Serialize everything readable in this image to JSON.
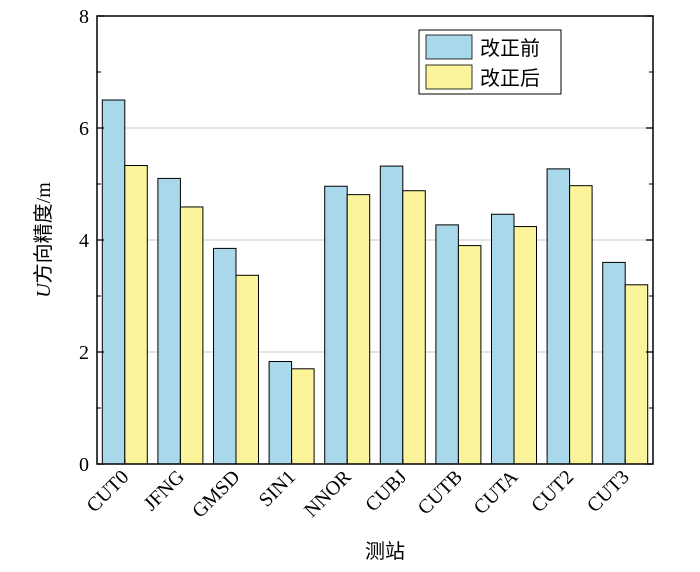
{
  "chart_data": {
    "type": "bar",
    "title": "",
    "xlabel": "测站",
    "ylabel": {
      "italic": "U",
      "cjk": "方向精度",
      "unit": "/m"
    },
    "ylim": [
      0,
      8
    ],
    "yticks": [
      0,
      2,
      4,
      6,
      8
    ],
    "grid": "horizontal",
    "legend_position": "top-right",
    "categories": [
      "CUT0",
      "JFNG",
      "GMSD",
      "SIN1",
      "NNOR",
      "CUBJ",
      "CUTB",
      "CUTA",
      "CUT2",
      "CUT3"
    ],
    "series": [
      {
        "name": "改正前",
        "color": "#a8d8ea",
        "values": [
          6.5,
          5.1,
          3.85,
          1.83,
          4.96,
          5.32,
          4.27,
          4.46,
          5.27,
          3.6
        ]
      },
      {
        "name": "改正后",
        "color": "#fbf49a",
        "values": [
          5.33,
          4.59,
          3.37,
          1.7,
          4.81,
          4.88,
          3.9,
          4.24,
          4.97,
          3.2
        ]
      }
    ]
  }
}
